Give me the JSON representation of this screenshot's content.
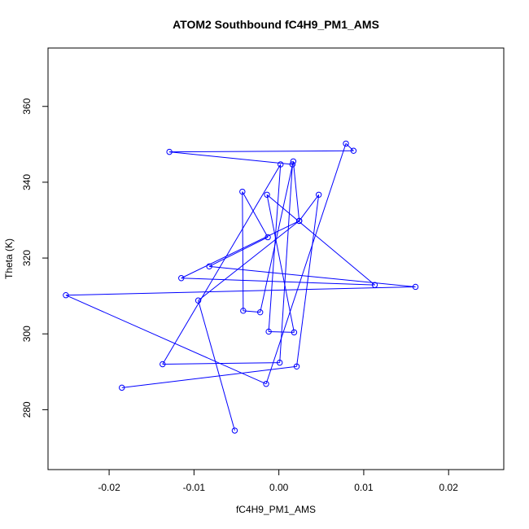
{
  "chart_data": {
    "type": "line",
    "title": "ATOM2 Southbound fC4H9_PM1_AMS",
    "xlabel": "fC4H9_PM1_AMS",
    "ylabel": "Theta (K)",
    "xlim": [
      -0.0272,
      0.0265
    ],
    "ylim": [
      264.2,
      375.4
    ],
    "xticks": [
      -0.02,
      -0.01,
      0.0,
      0.01,
      0.02
    ],
    "xtick_labels": [
      "-0.02",
      "-0.01",
      "0.00",
      "0.01",
      "0.02"
    ],
    "yticks": [
      280,
      300,
      320,
      340,
      360
    ],
    "ytick_labels": [
      "280",
      "300",
      "320",
      "340",
      "360"
    ],
    "grid": false,
    "line_color": "#0000ff",
    "marker": "open-circle",
    "series": [
      {
        "x": [
          -0.0052,
          -0.0095,
          0.0024,
          0.0017,
          -0.0022,
          -0.0042,
          -0.0043,
          -0.0013,
          -0.0082,
          0.0161,
          -0.0251,
          -0.0015,
          0.0079,
          0.0088,
          -0.0129,
          0.0016,
          0.0001,
          -0.0137,
          0.0002,
          -0.0012,
          0.0018,
          -0.0014,
          0.0113,
          -0.0115,
          0.0024,
          0.0047,
          0.0021,
          -0.0185
        ],
        "y": [
          274.5,
          308.8,
          329.8,
          345.5,
          305.7,
          306.1,
          337.5,
          325.5,
          317.8,
          312.4,
          310.2,
          286.8,
          350.2,
          348.3,
          348.0,
          344.7,
          292.4,
          292.0,
          344.7,
          300.6,
          300.4,
          336.7,
          312.9,
          314.7,
          329.8,
          336.7,
          291.4,
          285.8
        ]
      }
    ]
  }
}
